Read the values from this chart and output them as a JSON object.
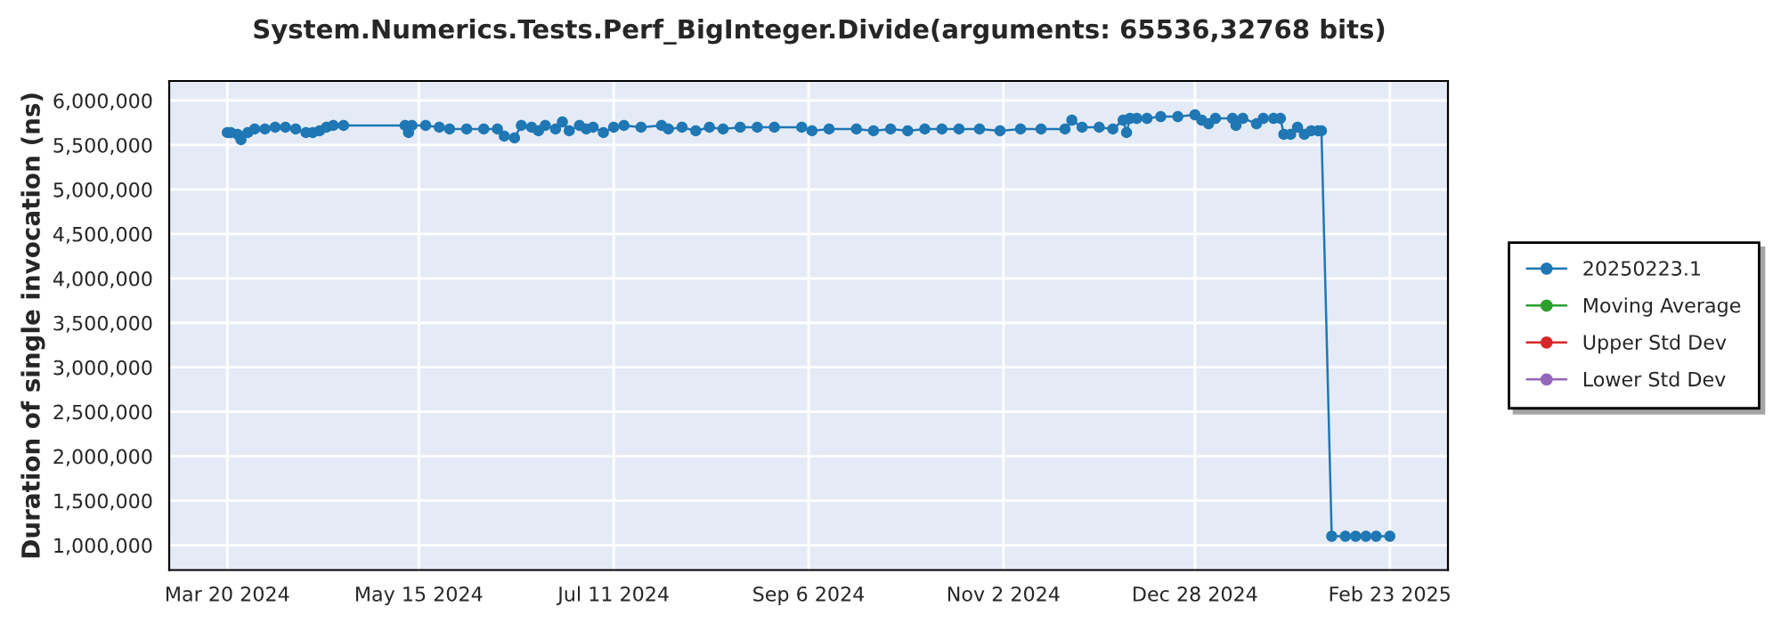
{
  "chart_data": {
    "type": "line",
    "title": "System.Numerics.Tests.Perf_BigInteger.Divide(arguments: 65536,32768 bits)",
    "ylabel": "Duration of single invocation (ns)",
    "x": [
      "2024-03-20",
      "2024-03-21",
      "2024-03-23",
      "2024-03-24",
      "2024-03-26",
      "2024-03-28",
      "2024-03-31",
      "2024-04-03",
      "2024-04-06",
      "2024-04-09",
      "2024-04-12",
      "2024-04-14",
      "2024-04-16",
      "2024-04-18",
      "2024-04-20",
      "2024-04-23",
      "2024-05-11",
      "2024-05-12",
      "2024-05-13",
      "2024-05-17",
      "2024-05-21",
      "2024-05-24",
      "2024-05-29",
      "2024-06-03",
      "2024-06-07",
      "2024-06-09",
      "2024-06-12",
      "2024-06-14",
      "2024-06-17",
      "2024-06-19",
      "2024-06-21",
      "2024-06-24",
      "2024-06-26",
      "2024-06-28",
      "2024-07-01",
      "2024-07-03",
      "2024-07-05",
      "2024-07-08",
      "2024-07-11",
      "2024-07-14",
      "2024-07-19",
      "2024-07-25",
      "2024-07-27",
      "2024-07-31",
      "2024-08-04",
      "2024-08-08",
      "2024-08-12",
      "2024-08-17",
      "2024-08-22",
      "2024-08-27",
      "2024-09-04",
      "2024-09-07",
      "2024-09-12",
      "2024-09-20",
      "2024-09-25",
      "2024-09-30",
      "2024-10-05",
      "2024-10-10",
      "2024-10-15",
      "2024-10-20",
      "2024-10-26",
      "2024-11-01",
      "2024-11-07",
      "2024-11-13",
      "2024-11-20",
      "2024-11-22",
      "2024-11-25",
      "2024-11-30",
      "2024-12-04",
      "2024-12-07",
      "2024-12-08",
      "2024-12-09",
      "2024-12-11",
      "2024-12-14",
      "2024-12-18",
      "2024-12-23",
      "2024-12-28",
      "2024-12-30",
      "2025-01-01",
      "2025-01-03",
      "2025-01-08",
      "2025-01-09",
      "2025-01-11",
      "2025-01-15",
      "2025-01-17",
      "2025-01-20",
      "2025-01-22",
      "2025-01-23",
      "2025-01-25",
      "2025-01-27",
      "2025-01-29",
      "2025-01-31",
      "2025-02-02",
      "2025-02-03",
      "2025-02-06",
      "2025-02-10",
      "2025-02-13",
      "2025-02-16",
      "2025-02-19",
      "2025-02-23"
    ],
    "series": [
      {
        "name": "20250223.1",
        "color": "#1f77b4",
        "values": [
          5640000,
          5640000,
          5620000,
          5560000,
          5640000,
          5680000,
          5680000,
          5700000,
          5700000,
          5680000,
          5640000,
          5640000,
          5660000,
          5700000,
          5720000,
          5720000,
          5720000,
          5640000,
          5720000,
          5720000,
          5700000,
          5680000,
          5680000,
          5680000,
          5680000,
          5600000,
          5580000,
          5720000,
          5700000,
          5660000,
          5720000,
          5680000,
          5760000,
          5660000,
          5720000,
          5680000,
          5700000,
          5640000,
          5700000,
          5720000,
          5700000,
          5720000,
          5680000,
          5700000,
          5660000,
          5700000,
          5680000,
          5700000,
          5700000,
          5700000,
          5700000,
          5660000,
          5680000,
          5680000,
          5660000,
          5680000,
          5660000,
          5680000,
          5680000,
          5680000,
          5680000,
          5660000,
          5680000,
          5680000,
          5680000,
          5780000,
          5700000,
          5700000,
          5680000,
          5780000,
          5640000,
          5800000,
          5800000,
          5800000,
          5820000,
          5820000,
          5840000,
          5780000,
          5740000,
          5800000,
          5800000,
          5720000,
          5800000,
          5740000,
          5800000,
          5800000,
          5800000,
          5620000,
          5620000,
          5700000,
          5620000,
          5660000,
          5660000,
          5660000,
          1100000,
          1100000,
          1100000,
          1100000,
          1100000,
          1100000
        ]
      },
      {
        "name": "Moving Average",
        "color": "#2ca02c",
        "values": [
          null,
          null,
          null,
          null,
          null,
          null,
          null,
          null,
          null,
          null,
          null,
          null,
          null,
          null,
          null,
          null,
          null,
          null,
          null,
          null,
          null,
          null,
          null,
          null,
          null,
          null,
          null,
          null,
          null,
          null,
          null,
          null,
          null,
          null,
          null,
          null,
          null,
          null,
          null,
          null,
          null,
          null,
          null,
          null,
          null,
          null,
          null,
          null,
          null,
          null,
          null,
          null,
          null,
          null,
          null,
          null,
          null,
          null,
          null,
          null,
          null,
          null,
          null,
          null,
          null,
          null,
          null,
          null,
          null,
          null,
          null,
          null,
          null,
          null,
          null,
          null,
          null,
          null,
          null,
          null,
          null,
          null,
          null,
          null,
          null,
          null,
          null,
          null,
          null,
          null,
          null,
          null,
          null,
          null,
          null,
          null,
          null,
          null,
          null,
          null
        ]
      },
      {
        "name": "Upper Std Dev",
        "color": "#d62728",
        "values": [
          null,
          null,
          null,
          null,
          null,
          null,
          null,
          null,
          null,
          null,
          null,
          null,
          null,
          null,
          null,
          null,
          null,
          null,
          null,
          null,
          null,
          null,
          null,
          null,
          null,
          null,
          null,
          null,
          null,
          null,
          null,
          null,
          null,
          null,
          null,
          null,
          null,
          null,
          null,
          null,
          null,
          null,
          null,
          null,
          null,
          null,
          null,
          null,
          null,
          null,
          null,
          null,
          null,
          null,
          null,
          null,
          null,
          null,
          null,
          null,
          null,
          null,
          null,
          null,
          null,
          null,
          null,
          null,
          null,
          null,
          null,
          null,
          null,
          null,
          null,
          null,
          null,
          null,
          null,
          null,
          null,
          null,
          null,
          null,
          null,
          null,
          null,
          null,
          null,
          null,
          null,
          null,
          null,
          null,
          null,
          null,
          null,
          null,
          null,
          null
        ]
      },
      {
        "name": "Lower Std Dev",
        "color": "#9467bd",
        "values": [
          null,
          null,
          null,
          null,
          null,
          null,
          null,
          null,
          null,
          null,
          null,
          null,
          null,
          null,
          null,
          null,
          null,
          null,
          null,
          null,
          null,
          null,
          null,
          null,
          null,
          null,
          null,
          null,
          null,
          null,
          null,
          null,
          null,
          null,
          null,
          null,
          null,
          null,
          null,
          null,
          null,
          null,
          null,
          null,
          null,
          null,
          null,
          null,
          null,
          null,
          null,
          null,
          null,
          null,
          null,
          null,
          null,
          null,
          null,
          null,
          null,
          null,
          null,
          null,
          null,
          null,
          null,
          null,
          null,
          null,
          null,
          null,
          null,
          null,
          null,
          null,
          null,
          null,
          null,
          null,
          null,
          null,
          null,
          null,
          null,
          null,
          null,
          null,
          null,
          null,
          null,
          null,
          null,
          null,
          null,
          null,
          null,
          null,
          null,
          null
        ]
      }
    ],
    "xlim": [
      "2024-03-03",
      "2025-03-12"
    ],
    "xticks": [
      {
        "value": "2024-03-20",
        "label": "Mar 20 2024"
      },
      {
        "value": "2024-05-15",
        "label": "May 15 2024"
      },
      {
        "value": "2024-07-11",
        "label": "Jul 11 2024"
      },
      {
        "value": "2024-09-06",
        "label": "Sep 6 2024"
      },
      {
        "value": "2024-11-02",
        "label": "Nov 2 2024"
      },
      {
        "value": "2024-12-28",
        "label": "Dec 28 2024"
      },
      {
        "value": "2025-02-23",
        "label": "Feb 23 2025"
      }
    ],
    "ylim": [
      720000,
      6220000
    ],
    "yticks": [
      {
        "value": 1000000,
        "label": "1,000,000"
      },
      {
        "value": 1500000,
        "label": "1,500,000"
      },
      {
        "value": 2000000,
        "label": "2,000,000"
      },
      {
        "value": 2500000,
        "label": "2,500,000"
      },
      {
        "value": 3000000,
        "label": "3,000,000"
      },
      {
        "value": 3500000,
        "label": "3,500,000"
      },
      {
        "value": 4000000,
        "label": "4,000,000"
      },
      {
        "value": 4500000,
        "label": "4,500,000"
      },
      {
        "value": 5000000,
        "label": "5,000,000"
      },
      {
        "value": 5500000,
        "label": "5,500,000"
      },
      {
        "value": 6000000,
        "label": "6,000,000"
      }
    ],
    "grid": true,
    "legend": "right",
    "marker": "circle",
    "line_style": "solid"
  }
}
